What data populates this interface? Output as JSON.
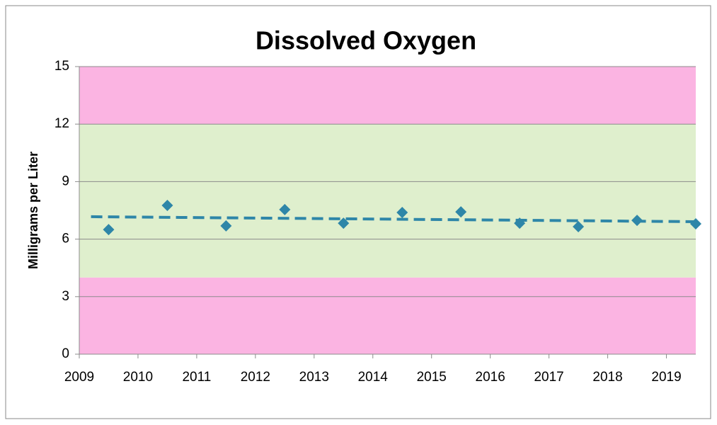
{
  "chart_data": {
    "type": "scatter",
    "title": "Dissolved Oxygen",
    "y_label": "Milligrams per Liter",
    "xlim": [
      2009,
      2019.5
    ],
    "xticks": [
      2009,
      2010,
      2011,
      2012,
      2013,
      2014,
      2015,
      2016,
      2017,
      2018,
      2019
    ],
    "ylim": [
      0,
      15
    ],
    "yticks": [
      0,
      3,
      6,
      9,
      12,
      15
    ],
    "grid": true,
    "bands": [
      {
        "from": 0,
        "to": 4,
        "color": "#fbb4e2"
      },
      {
        "from": 4,
        "to": 12,
        "color": "#dfefcd"
      },
      {
        "from": 12,
        "to": 15,
        "color": "#fbb4e2"
      }
    ],
    "series": [
      {
        "color": "#2e86a8",
        "x": [
          2009.5,
          2010.5,
          2011.5,
          2012.5,
          2013.5,
          2014.5,
          2015.5,
          2016.5,
          2017.5,
          2018.5,
          2019.5
        ],
        "values": [
          6.5,
          7.76,
          6.69,
          7.54,
          6.83,
          7.39,
          7.42,
          6.83,
          6.65,
          6.98,
          6.8
        ]
      }
    ],
    "trend": {
      "color": "#2e86a8",
      "x": [
        2009.2,
        2019.5
      ],
      "values": [
        7.17,
        6.91
      ]
    }
  }
}
